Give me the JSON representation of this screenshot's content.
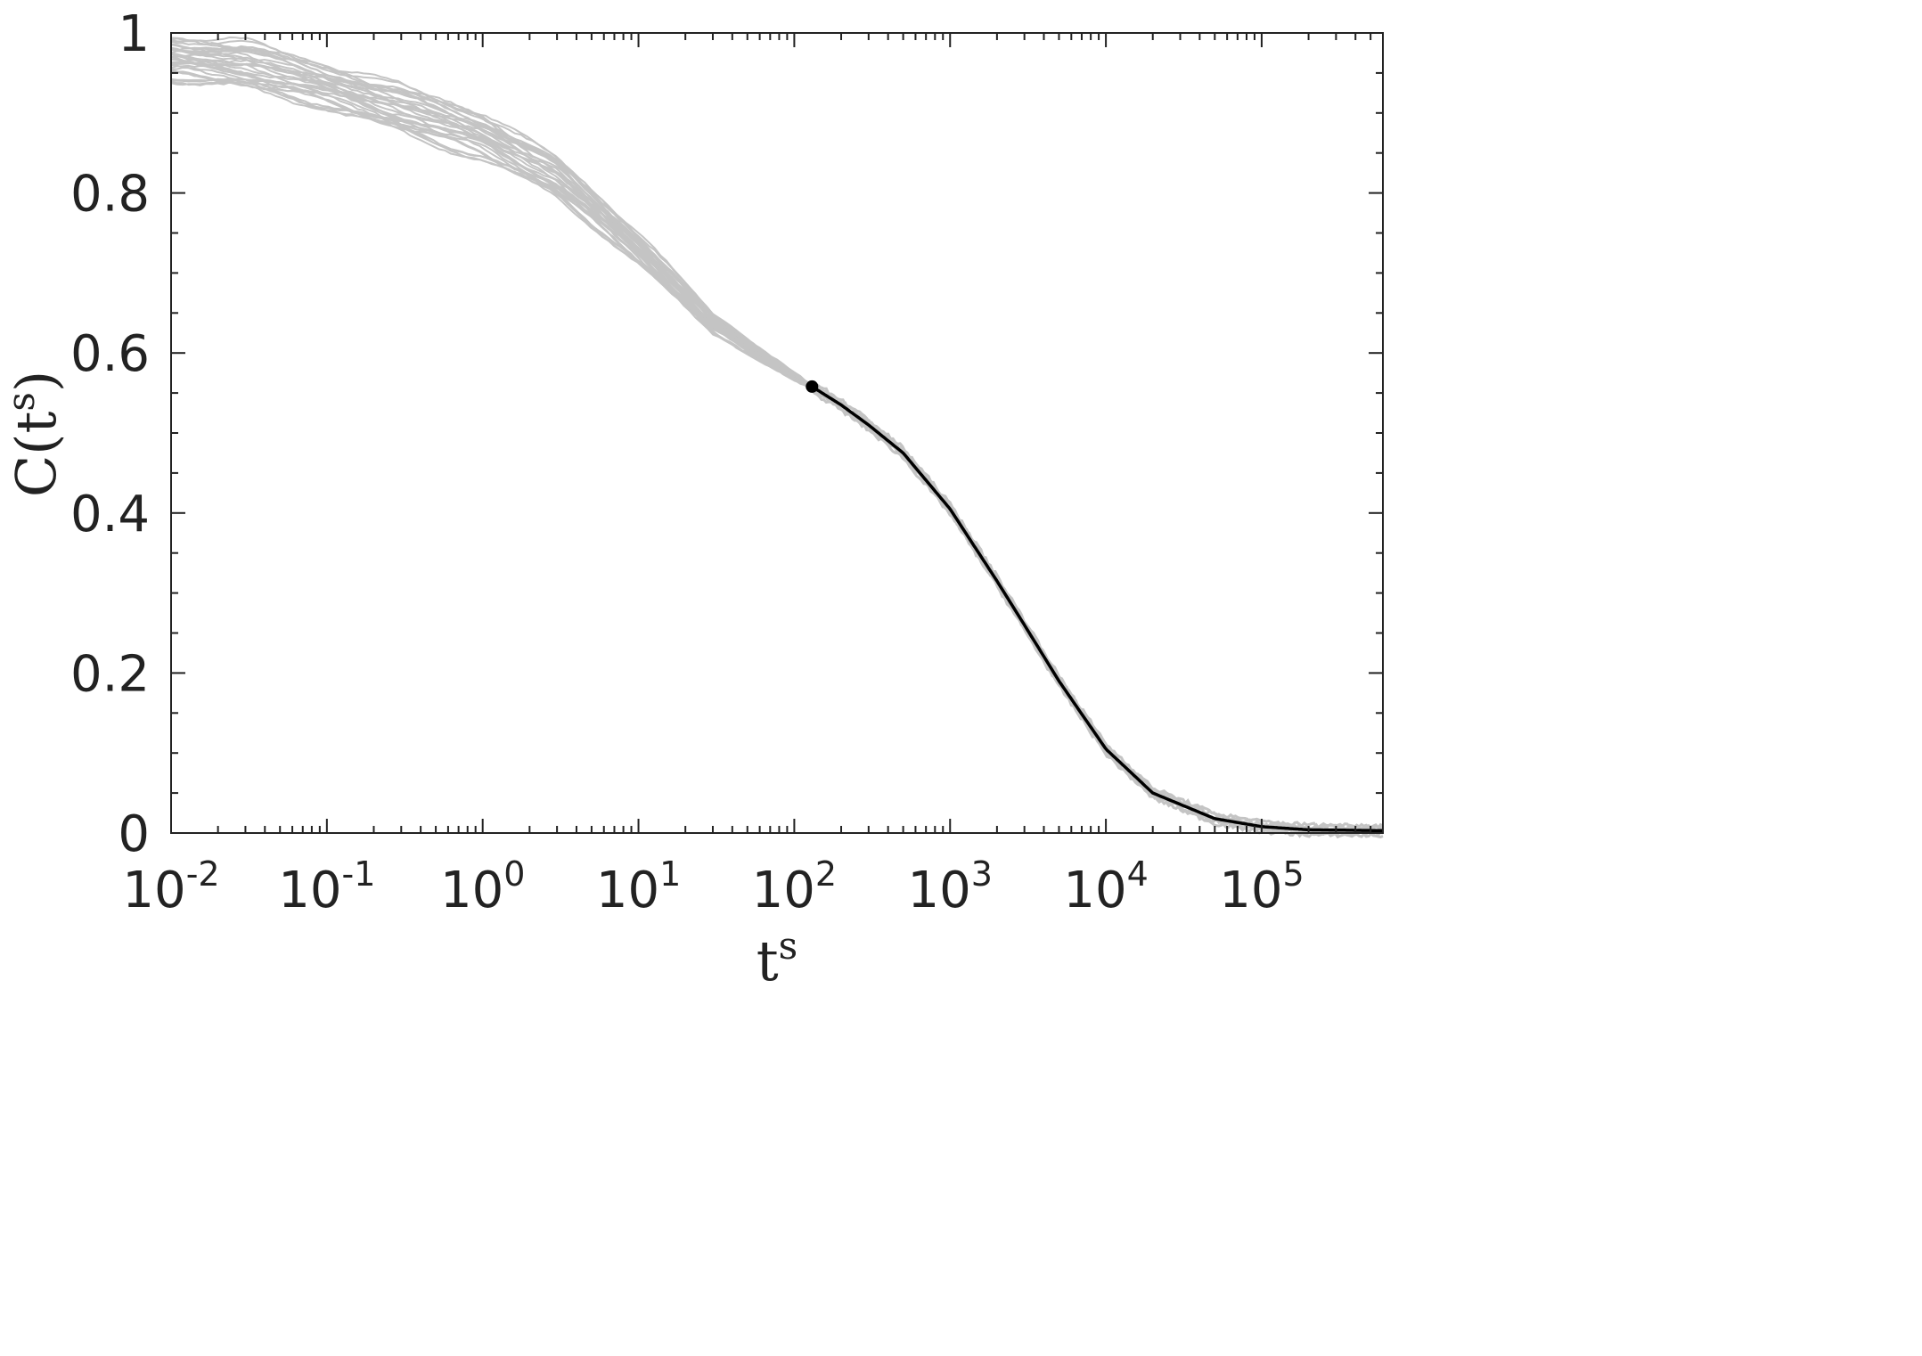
{
  "chart_data": {
    "type": "line",
    "xscale": "log",
    "xlim": [
      0.01,
      600000
    ],
    "ylim": [
      0,
      1
    ],
    "grid": false,
    "legend": "none",
    "xlabel": {
      "base": "t",
      "sup": "s"
    },
    "ylabel": {
      "prefix": "C(",
      "base": "t",
      "sup": "s",
      "suffix": ")"
    },
    "x_ticks": [
      {
        "value": 0.01,
        "base": "10",
        "exp": "-2"
      },
      {
        "value": 0.1,
        "base": "10",
        "exp": "-1"
      },
      {
        "value": 1,
        "base": "10",
        "exp": "0"
      },
      {
        "value": 10,
        "base": "10",
        "exp": "1"
      },
      {
        "value": 100,
        "base": "10",
        "exp": "2"
      },
      {
        "value": 1000,
        "base": "10",
        "exp": "3"
      },
      {
        "value": 10000,
        "base": "10",
        "exp": "4"
      },
      {
        "value": 100000,
        "base": "10",
        "exp": "5"
      }
    ],
    "y_ticks": [
      {
        "value": 0,
        "label": "0"
      },
      {
        "value": 0.2,
        "label": "0.2"
      },
      {
        "value": 0.4,
        "label": "0.4"
      },
      {
        "value": 0.6,
        "label": "0.6"
      },
      {
        "value": 0.8,
        "label": "0.8"
      },
      {
        "value": 1,
        "label": "1"
      }
    ],
    "series": [
      {
        "role": "individual-trajectories",
        "count": 30,
        "color": "#c4c4c4",
        "x": [
          0.01,
          0.03,
          0.1,
          0.3,
          1,
          3,
          10,
          30,
          100,
          130
        ],
        "y_upper": [
          0.995,
          0.99,
          0.96,
          0.935,
          0.9,
          0.845,
          0.75,
          0.65,
          0.575,
          0.56
        ],
        "y_lower": [
          0.94,
          0.93,
          0.905,
          0.875,
          0.84,
          0.795,
          0.71,
          0.625,
          0.565,
          0.555
        ]
      },
      {
        "role": "average-fit",
        "color": "#000000",
        "x": [
          130,
          200,
          300,
          500,
          1000,
          2000,
          3000,
          5000,
          10000,
          20000,
          50000,
          100000,
          200000,
          600000
        ],
        "y": [
          0.558,
          0.535,
          0.51,
          0.475,
          0.405,
          0.315,
          0.26,
          0.19,
          0.105,
          0.05,
          0.018,
          0.008,
          0.004,
          0.003
        ]
      }
    ],
    "marker": {
      "x": 130,
      "y": 0.558,
      "color": "#000000"
    },
    "colors": {
      "axis": "#222222",
      "trajectories": "#c4c4c4",
      "fit": "#000000"
    }
  }
}
